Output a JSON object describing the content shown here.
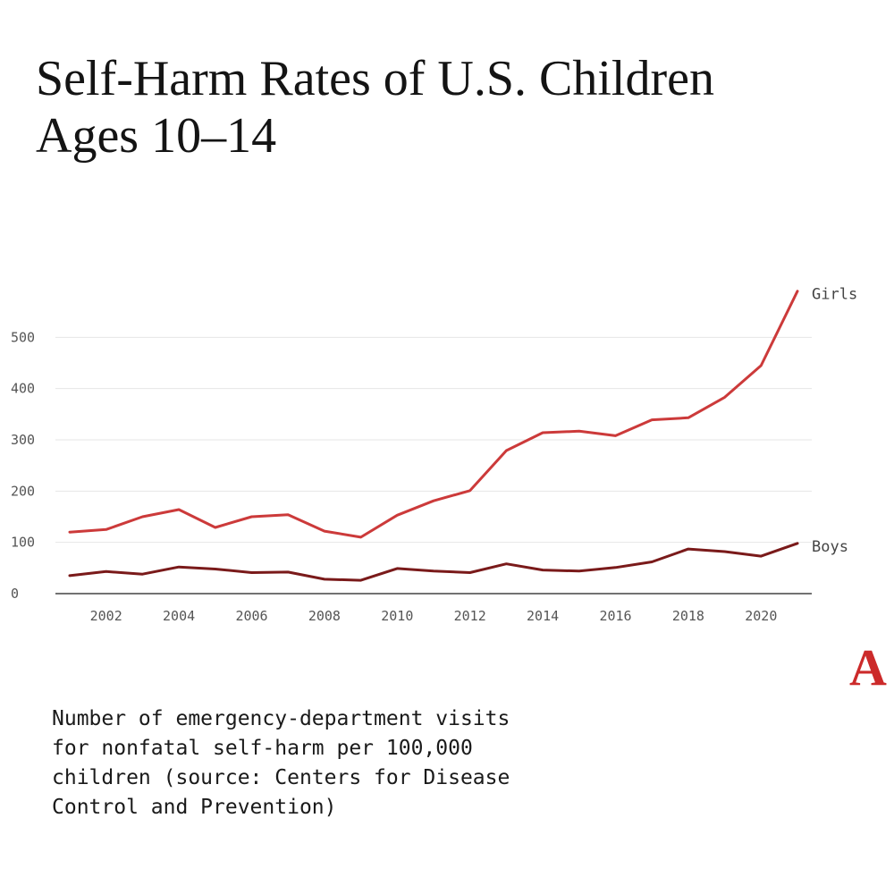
{
  "title_lines": [
    "Self-Harm Rates of U.S. Children",
    "Ages 10–14"
  ],
  "caption_lines": [
    "Number of emergency-department visits",
    "for nonfatal self-harm per 100,000",
    "children (source: Centers for Disease",
    "Control and Prevention)"
  ],
  "logo": "A",
  "colors": {
    "girls": "#cc3a3a",
    "boys": "#7a1a1a",
    "logo": "#cc2a2a",
    "grid": "#e6e6e6",
    "axis": "#444444"
  },
  "chart_data": {
    "type": "line",
    "title": "Self-Harm Rates of U.S. Children Ages 10–14",
    "xlabel": "",
    "ylabel": "",
    "x": [
      2001,
      2002,
      2003,
      2004,
      2005,
      2006,
      2007,
      2008,
      2009,
      2010,
      2011,
      2012,
      2013,
      2014,
      2015,
      2016,
      2017,
      2018,
      2019,
      2020,
      2021
    ],
    "xticks": [
      2002,
      2004,
      2006,
      2008,
      2010,
      2012,
      2014,
      2016,
      2018,
      2020
    ],
    "xtick_labels": [
      "2002",
      "2004",
      "2006",
      "2008",
      "2010",
      "2012",
      "2014",
      "2016",
      "2018",
      "2020"
    ],
    "yticks": [
      0,
      100,
      200,
      300,
      400,
      500
    ],
    "ytick_labels": [
      "0",
      "100",
      "200",
      "300",
      "400",
      "500"
    ],
    "xlim": [
      2000.9,
      2022.4
    ],
    "ylim": [
      0,
      600
    ],
    "grid": true,
    "legend": "inline labels at line ends",
    "series": [
      {
        "name": "Girls",
        "color": "#cc3a3a",
        "values": [
          120,
          125,
          150,
          164,
          129,
          150,
          154,
          122,
          110,
          153,
          181,
          201,
          279,
          314,
          317,
          308,
          339,
          343,
          383,
          445,
          590
        ]
      },
      {
        "name": "Boys",
        "color": "#7a1a1a",
        "values": [
          35,
          43,
          38,
          52,
          48,
          41,
          42,
          28,
          26,
          49,
          44,
          41,
          58,
          46,
          44,
          51,
          62,
          87,
          82,
          73,
          98
        ]
      }
    ]
  }
}
